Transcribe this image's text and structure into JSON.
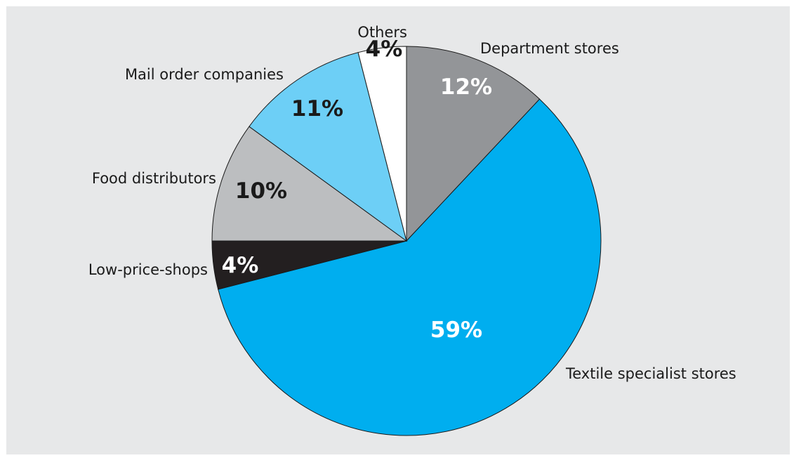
{
  "chart_data": {
    "type": "pie",
    "title": "",
    "slices": [
      {
        "label": "Department stores",
        "value": 12,
        "value_label": "12%",
        "color": "#939598",
        "value_color": "#ffffff"
      },
      {
        "label": "Textile specialist stores",
        "value": 59,
        "value_label": "59%",
        "color": "#00aeef",
        "value_color": "#ffffff"
      },
      {
        "label": "Low-price-shops",
        "value": 4,
        "value_label": "4%",
        "color": "#231f20",
        "value_color": "#ffffff"
      },
      {
        "label": "Food distributors",
        "value": 10,
        "value_label": "10%",
        "color": "#bcbec0",
        "value_color": "#1a1a1a"
      },
      {
        "label": "Mail order companies",
        "value": 11,
        "value_label": "11%",
        "color": "#6dcff6",
        "value_color": "#1a1a1a"
      },
      {
        "label": "Others",
        "value": 4,
        "value_label": "4%",
        "color": "#ffffff",
        "value_color": "#1a1a1a"
      }
    ],
    "start_angle_deg": 0,
    "direction": "clockwise"
  }
}
